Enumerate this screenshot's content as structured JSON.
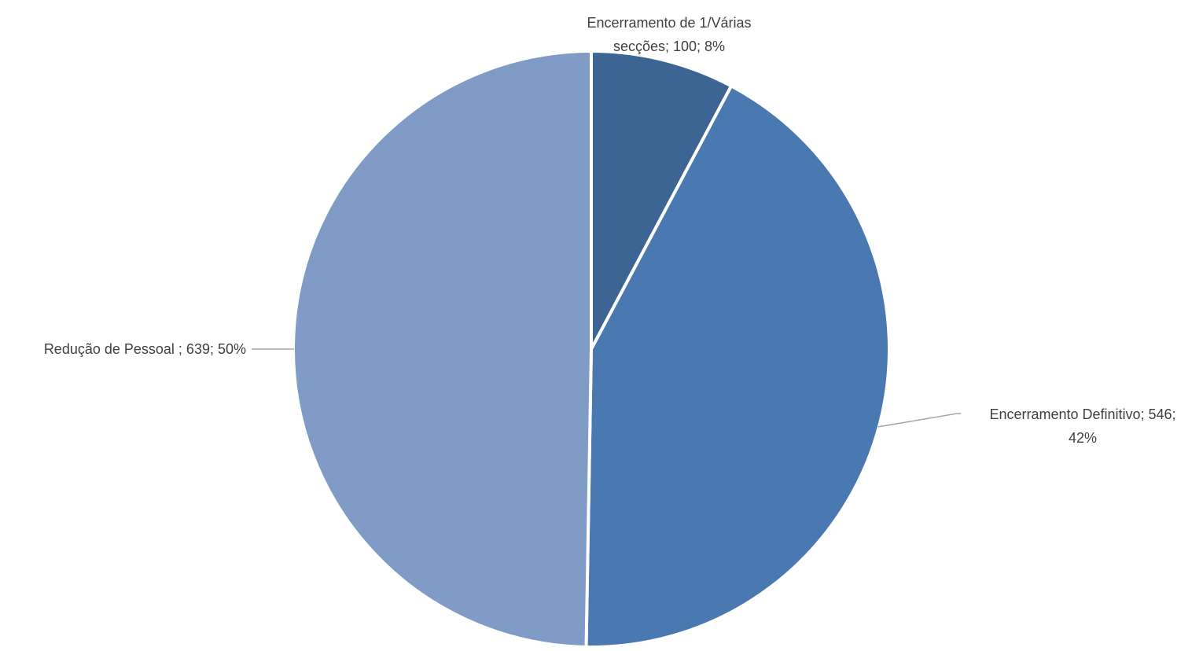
{
  "chart_data": {
    "type": "pie",
    "title": "",
    "categories": [
      "Encerramento de 1/Várias secções",
      "Encerramento Definitivo",
      "Redução de Pessoal"
    ],
    "values": [
      100,
      546,
      639
    ],
    "percentages": [
      "8%",
      "42%",
      "50%"
    ],
    "start_angle_deg": 0,
    "direction": "clockwise",
    "colors": [
      "#3d6594",
      "#4a78b0",
      "#7f9bc6"
    ],
    "slice_border_color": "#ffffff",
    "leader_line_color": "#a6a6a6",
    "legend": "none",
    "data_labels": [
      [
        "Encerramento de 1/Várias",
        "secções; 100; 8%"
      ],
      [
        "Encerramento Definitivo; 546;",
        "42%"
      ],
      [
        "Redução de Pessoal ; 639; 50%"
      ]
    ]
  }
}
